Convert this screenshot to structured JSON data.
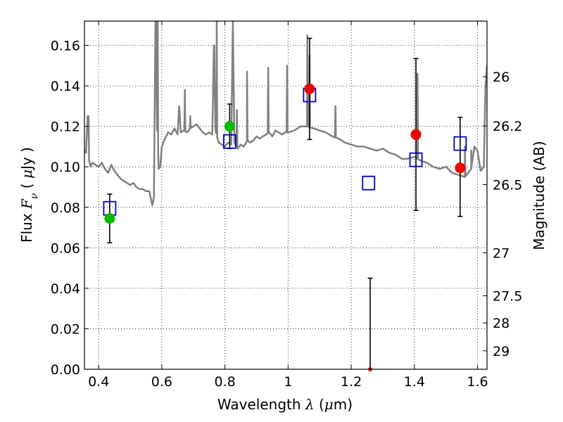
{
  "chart_data": {
    "type": "scatter",
    "title": "",
    "xlabel": "Wavelength",
    "xlabel_symbol": "λ",
    "xlabel_unit_open": "(",
    "xlabel_unit_mu": "μ",
    "xlabel_unit_rest": "m)",
    "ylabel": "Flux",
    "ylabel_symbol_base": "F",
    "ylabel_symbol_sub": "ν",
    "ylabel_unit_open": "(",
    "ylabel_unit_mu": "μ",
    "ylabel_unit_rest": "Jy )",
    "ylabel_right": "Magnitude (AB)",
    "xlim": [
      0.355,
      1.63
    ],
    "ylim": [
      0.0,
      0.172
    ],
    "grid": true,
    "x_ticks": [
      0.4,
      0.6,
      0.8,
      1.0,
      1.2,
      1.4,
      1.6
    ],
    "x_tick_labels": [
      "0.4",
      "0.6",
      "0.8",
      "1",
      "1.2",
      "1.4",
      "1.6"
    ],
    "y_ticks": [
      0.0,
      0.02,
      0.04,
      0.06,
      0.08,
      0.1,
      0.12,
      0.14,
      0.16
    ],
    "y_tick_labels": [
      "0.00",
      "0.02",
      "0.04",
      "0.06",
      "0.08",
      "0.10",
      "0.12",
      "0.14",
      "0.16"
    ],
    "right_ticks": [
      {
        "label": "26",
        "flux": 0.1445
      },
      {
        "label": "26.2",
        "flux": 0.1202
      },
      {
        "label": "26.5",
        "flux": 0.0912
      },
      {
        "label": "27",
        "flux": 0.0575
      },
      {
        "label": "27.5",
        "flux": 0.0363
      },
      {
        "label": "28",
        "flux": 0.0229
      },
      {
        "label": "29",
        "flux": 0.0091
      }
    ],
    "series": [
      {
        "kind": "template_sed",
        "color": "#808080",
        "x": [
          0.355,
          0.36,
          0.365,
          0.37,
          0.375,
          0.38,
          0.39,
          0.4,
          0.41,
          0.42,
          0.43,
          0.44,
          0.45,
          0.46,
          0.47,
          0.48,
          0.49,
          0.5,
          0.51,
          0.52,
          0.53,
          0.54,
          0.55,
          0.56,
          0.57,
          0.575,
          0.58,
          0.585,
          0.59,
          0.595,
          0.6,
          0.61,
          0.62,
          0.63,
          0.64,
          0.65,
          0.655,
          0.66,
          0.67,
          0.68,
          0.69,
          0.7,
          0.71,
          0.72,
          0.73,
          0.74,
          0.75,
          0.76,
          0.765,
          0.77,
          0.78,
          0.79,
          0.8,
          0.81,
          0.82,
          0.825,
          0.83,
          0.84,
          0.85,
          0.86,
          0.87,
          0.88,
          0.89,
          0.9,
          0.91,
          0.92,
          0.93,
          0.94,
          0.95,
          0.96,
          0.97,
          0.98,
          0.99,
          1.0,
          1.02,
          1.04,
          1.06,
          1.08,
          1.1,
          1.12,
          1.14,
          1.16,
          1.18,
          1.2,
          1.22,
          1.24,
          1.26,
          1.28,
          1.3,
          1.32,
          1.34,
          1.36,
          1.38,
          1.4,
          1.41,
          1.42,
          1.44,
          1.46,
          1.48,
          1.5,
          1.52,
          1.54,
          1.56,
          1.58,
          1.59,
          1.6,
          1.61,
          1.62,
          1.625,
          1.63
        ],
        "y": [
          0.108,
          0.107,
          0.125,
          0.103,
          0.1,
          0.102,
          0.101,
          0.1,
          0.102,
          0.099,
          0.097,
          0.101,
          0.098,
          0.096,
          0.094,
          0.093,
          0.092,
          0.091,
          0.092,
          0.09,
          0.089,
          0.089,
          0.088,
          0.088,
          0.081,
          0.085,
          0.172,
          0.12,
          0.099,
          0.1,
          0.11,
          0.114,
          0.117,
          0.116,
          0.119,
          0.116,
          0.13,
          0.117,
          0.118,
          0.117,
          0.119,
          0.12,
          0.121,
          0.119,
          0.117,
          0.116,
          0.117,
          0.116,
          0.16,
          0.118,
          0.112,
          0.111,
          0.11,
          0.112,
          0.111,
          0.172,
          0.112,
          0.109,
          0.111,
          0.11,
          0.113,
          0.112,
          0.113,
          0.115,
          0.114,
          0.115,
          0.116,
          0.117,
          0.115,
          0.118,
          0.117,
          0.116,
          0.117,
          0.117,
          0.118,
          0.12,
          0.12,
          0.119,
          0.118,
          0.117,
          0.115,
          0.114,
          0.112,
          0.111,
          0.11,
          0.11,
          0.109,
          0.108,
          0.109,
          0.107,
          0.106,
          0.104,
          0.104,
          0.105,
          0.104,
          0.103,
          0.102,
          0.1,
          0.099,
          0.1,
          0.097,
          0.096,
          0.095,
          0.099,
          0.11,
          0.108,
          0.098,
          0.1,
          0.139,
          0.15
        ],
        "spikes": [
          {
            "x": 0.368,
            "y": 0.125
          },
          {
            "x": 0.582,
            "y": 0.172
          },
          {
            "x": 0.587,
            "y": 0.172
          },
          {
            "x": 0.655,
            "y": 0.13
          },
          {
            "x": 0.673,
            "y": 0.138
          },
          {
            "x": 0.69,
            "y": 0.125
          },
          {
            "x": 0.766,
            "y": 0.16
          },
          {
            "x": 0.774,
            "y": 0.172
          },
          {
            "x": 0.825,
            "y": 0.172
          },
          {
            "x": 0.838,
            "y": 0.128
          },
          {
            "x": 0.87,
            "y": 0.147
          },
          {
            "x": 0.87,
            "y": 0.147
          },
          {
            "x": 0.937,
            "y": 0.149
          },
          {
            "x": 0.997,
            "y": 0.15
          },
          {
            "x": 1.061,
            "y": 0.165
          },
          {
            "x": 1.068,
            "y": 0.155
          },
          {
            "x": 1.15,
            "y": 0.13
          },
          {
            "x": 1.41,
            "y": 0.146
          },
          {
            "x": 1.56,
            "y": 0.11
          },
          {
            "x": 1.58,
            "y": 0.108
          }
        ]
      },
      {
        "kind": "model_points",
        "marker": "open-square",
        "color": "#0000cc",
        "x": [
          0.435,
          0.815,
          1.068,
          1.255,
          1.405,
          1.545
        ],
        "y": [
          0.0795,
          0.1125,
          0.1355,
          0.092,
          0.1035,
          0.1115
        ]
      },
      {
        "kind": "observed_points",
        "marker": "filled-circle",
        "x": [
          0.435,
          0.815,
          1.068,
          1.26,
          1.405,
          1.545
        ],
        "y": [
          0.0745,
          0.12,
          0.1385,
          0.0,
          0.116,
          0.0995
        ],
        "yerr_low": [
          0.0625,
          0.109,
          0.1135,
          0.0,
          0.0785,
          0.0755
        ],
        "yerr_high": [
          0.0865,
          0.131,
          0.1635,
          0.045,
          0.1535,
          0.1245
        ],
        "colors": [
          "#00bb00",
          "#00bb00",
          "#ee0000",
          "#cc0000",
          "#ee0000",
          "#ee0000"
        ]
      }
    ]
  }
}
